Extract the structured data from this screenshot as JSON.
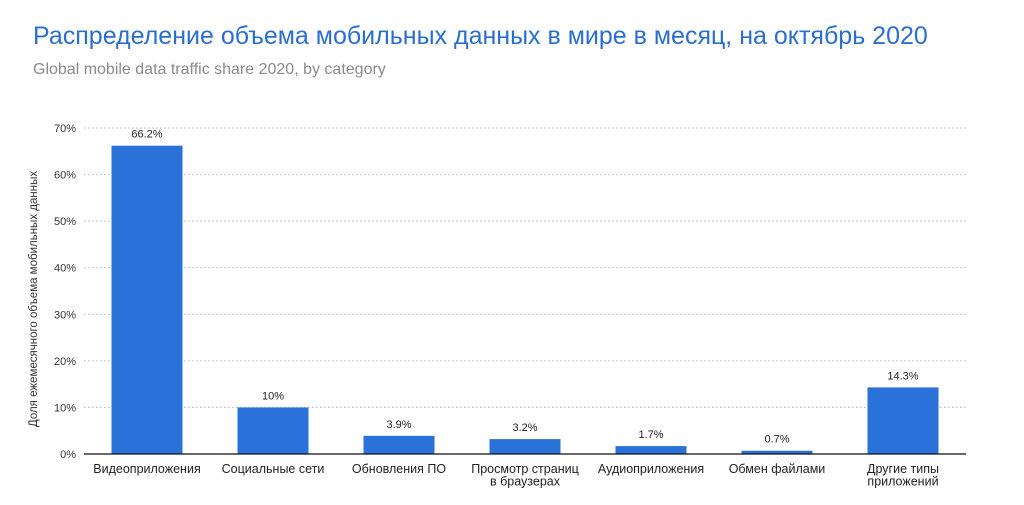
{
  "header": {
    "title": "Распределение объема мобильных данных в мире в месяц, на октябрь 2020",
    "subtitle": "Global mobile data traffic share 2020, by category"
  },
  "chart_data": {
    "type": "bar",
    "ylabel": "Доля ежемесячного объема мобильных данных",
    "xlabel": "",
    "ylim": [
      0,
      70
    ],
    "yticks": [
      0,
      10,
      20,
      30,
      40,
      50,
      60,
      70
    ],
    "ytick_labels": [
      "0%",
      "10%",
      "20%",
      "30%",
      "40%",
      "50%",
      "60%",
      "70%"
    ],
    "grid": true,
    "bar_color": "#2a72d9",
    "categories": [
      [
        "Видеоприложения"
      ],
      [
        "Социальные сети"
      ],
      [
        "Обновления ПО"
      ],
      [
        "Просмотр страниц",
        "в браузерах"
      ],
      [
        "Аудиоприложения"
      ],
      [
        "Обмен файлами"
      ],
      [
        "Другие типы",
        "приложений"
      ]
    ],
    "values": [
      66.2,
      10,
      3.9,
      3.2,
      1.7,
      0.7,
      14.3
    ],
    "data_labels": [
      "66.2%",
      "10%",
      "3.9%",
      "3.2%",
      "1.7%",
      "0.7%",
      "14.3%"
    ]
  }
}
